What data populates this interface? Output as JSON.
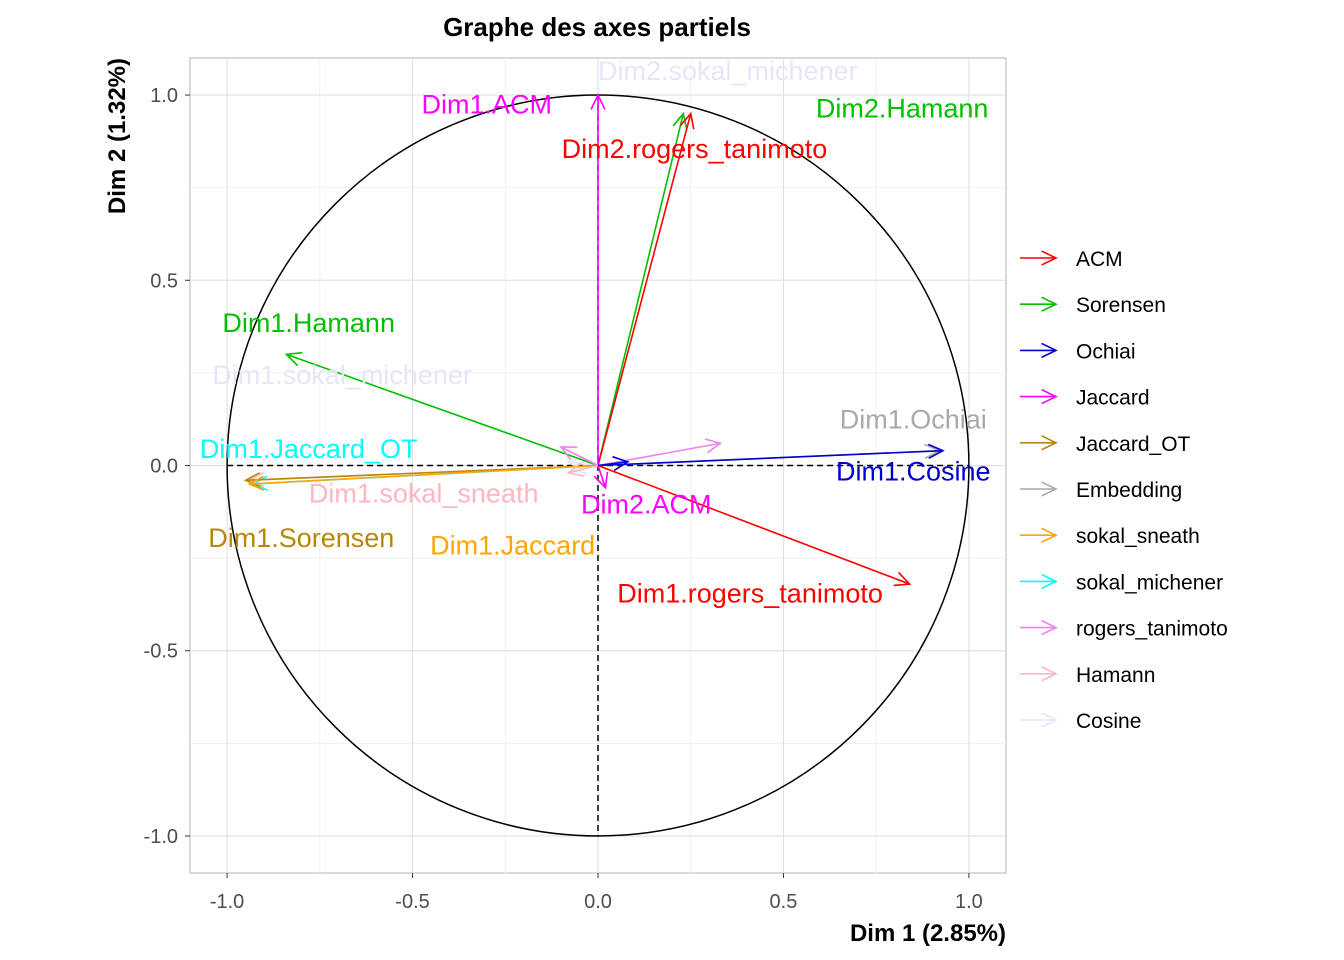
{
  "chart_data": {
    "type": "scatter",
    "title": "Graphe des axes partiels",
    "xlabel": "Dim 1 (2.85%)",
    "ylabel": "Dim 2 (1.32%)",
    "xlim": [
      -1.1,
      1.1
    ],
    "ylim": [
      -1.1,
      1.1
    ],
    "x_ticks": [
      -1.0,
      -0.5,
      0.0,
      0.5,
      1.0
    ],
    "x_tick_labels": [
      "-1.0",
      "-0.5",
      "0.0",
      "0.5",
      "1.0"
    ],
    "y_ticks": [
      -1.0,
      -0.5,
      0.0,
      0.5,
      1.0
    ],
    "y_tick_labels": [
      "-1.0",
      "-0.5",
      "0.0",
      "0.5",
      "1.0"
    ],
    "grid": true,
    "unit_circle": true,
    "legend_position": "right",
    "groups": [
      {
        "name": "ACM",
        "color": "#ff0000"
      },
      {
        "name": "Sorensen",
        "color": "#00c000"
      },
      {
        "name": "Ochiai",
        "color": "#0000cd"
      },
      {
        "name": "Jaccard",
        "color": "#ff00ff"
      },
      {
        "name": "Jaccard_OT",
        "color": "#b8860b"
      },
      {
        "name": "Embedding",
        "color": "#a9a9a9"
      },
      {
        "name": "sokal_sneath",
        "color": "#ffa500"
      },
      {
        "name": "sokal_michener",
        "color": "#00ffff"
      },
      {
        "name": "rogers_tanimoto",
        "color": "#ee82ee"
      },
      {
        "name": "Hamann",
        "color": "#ffb6c1"
      },
      {
        "name": "Cosine",
        "color": "#e6e6fa"
      }
    ],
    "arrows": [
      {
        "group": "Cosine",
        "x": -0.08,
        "y": 0.01,
        "label": "Dim2.sokal_michener",
        "label_x": 0.35,
        "label_y": 1.04
      },
      {
        "group": "Cosine",
        "x": -0.07,
        "y": -0.01,
        "label": "Dim1.sokal_michener",
        "label_x": -0.69,
        "label_y": 0.22
      },
      {
        "group": "Sorensen",
        "x": 0.23,
        "y": 0.95,
        "label": "Dim2.Hamann",
        "label_x": 0.82,
        "label_y": 0.94
      },
      {
        "group": "ACM",
        "x": 0.25,
        "y": 0.95,
        "label": "Dim2.rogers_tanimoto",
        "label_x": 0.26,
        "label_y": 0.83
      },
      {
        "group": "Jaccard",
        "x": 0.0,
        "y": 1.0,
        "label": "Dim1.ACM",
        "label_x": -0.3,
        "label_y": 0.95
      },
      {
        "group": "Sorensen",
        "x": -0.84,
        "y": 0.3,
        "label": "Dim1.Hamann",
        "label_x": -0.78,
        "label_y": 0.36
      },
      {
        "group": "sokal_michener",
        "x": -0.93,
        "y": -0.05,
        "label": "Dim1.Jaccard_OT",
        "label_x": -0.78,
        "label_y": 0.02
      },
      {
        "group": "Hamann",
        "x": -0.94,
        "y": -0.04,
        "label": "Dim1.sokal_sneath",
        "label_x": -0.47,
        "label_y": -0.1
      },
      {
        "group": "Jaccard_OT",
        "x": -0.95,
        "y": -0.04,
        "label": "Dim1.Sorensen",
        "label_x": -0.8,
        "label_y": -0.22
      },
      {
        "group": "sokal_sneath",
        "x": -0.94,
        "y": -0.05,
        "label": "Dim1.Jaccard",
        "label_x": -0.23,
        "label_y": -0.24
      },
      {
        "group": "Embedding",
        "x": 0.92,
        "y": 0.04,
        "label": "Dim1.Ochiai",
        "label_x": 0.85,
        "label_y": 0.1
      },
      {
        "group": "Ochiai",
        "x": 0.93,
        "y": 0.04,
        "label": "Dim1.Cosine",
        "label_x": 0.85,
        "label_y": -0.04
      },
      {
        "group": "ACM",
        "x": 0.84,
        "y": -0.32,
        "label": "Dim1.rogers_tanimoto",
        "label_x": 0.41,
        "label_y": -0.37
      },
      {
        "group": "Jaccard",
        "x": 0.02,
        "y": -0.06,
        "label": "Dim2.ACM",
        "label_x": 0.13,
        "label_y": -0.13
      },
      {
        "group": "rogers_tanimoto",
        "x": 0.33,
        "y": 0.06,
        "label": "",
        "label_x": 0,
        "label_y": 0
      },
      {
        "group": "rogers_tanimoto",
        "x": -0.1,
        "y": 0.05,
        "label": "",
        "label_x": 0,
        "label_y": 0
      },
      {
        "group": "Ochiai",
        "x": 0.08,
        "y": 0.01,
        "label": "",
        "label_x": 0,
        "label_y": 0
      },
      {
        "group": "Hamann",
        "x": -0.08,
        "y": -0.02,
        "label": "",
        "label_x": 0,
        "label_y": 0
      }
    ]
  }
}
